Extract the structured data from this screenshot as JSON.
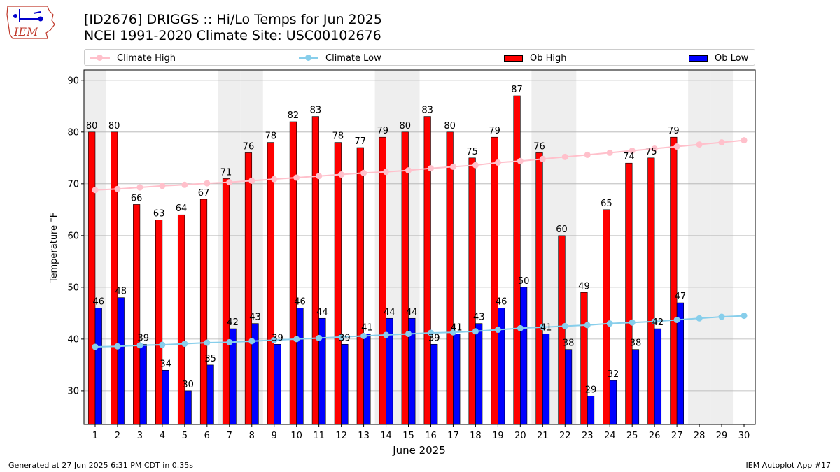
{
  "header": {
    "title_line1": "[ID2676] DRIGGS :: Hi/Lo Temps for Jun 2025",
    "title_line2": "NCEI 1991-2020 Climate Site: USC00102676",
    "logo_text": "IEM"
  },
  "footer": {
    "left": "Generated at 27 Jun 2025 6:31 PM CDT in 0.35s",
    "right": "IEM Autoplot App #17"
  },
  "legend": {
    "climate_high": "Climate High",
    "climate_low": "Climate Low",
    "ob_high": "Ob High",
    "ob_low": "Ob Low"
  },
  "chart_data": {
    "type": "bar",
    "xlabel": "June 2025",
    "ylabel": "Temperature °F",
    "ylim": [
      23.5,
      92
    ],
    "yticks": [
      30,
      40,
      50,
      60,
      70,
      80,
      90
    ],
    "grid": true,
    "legend_position": "top",
    "categories": [
      "1",
      "2",
      "3",
      "4",
      "5",
      "6",
      "7",
      "8",
      "9",
      "10",
      "11",
      "12",
      "13",
      "14",
      "15",
      "16",
      "17",
      "18",
      "19",
      "20",
      "21",
      "22",
      "23",
      "24",
      "25",
      "26",
      "27",
      "28",
      "29",
      "30"
    ],
    "weekend_days": [
      1,
      7,
      8,
      14,
      15,
      21,
      22,
      28,
      29
    ],
    "series": [
      {
        "name": "Ob High",
        "kind": "bar",
        "color": "#ff0000",
        "values": [
          80,
          80,
          66,
          63,
          64,
          67,
          71,
          76,
          78,
          82,
          83,
          78,
          77,
          79,
          80,
          83,
          80,
          75,
          79,
          87,
          76,
          60,
          49,
          65,
          74,
          75,
          79,
          null,
          null,
          null
        ]
      },
      {
        "name": "Ob Low",
        "kind": "bar",
        "color": "#0000ff",
        "values": [
          46,
          48,
          39,
          34,
          30,
          35,
          42,
          43,
          39,
          46,
          44,
          39,
          41,
          44,
          44,
          39,
          41,
          43,
          46,
          50,
          41,
          38,
          29,
          32,
          38,
          42,
          47,
          null,
          null,
          null
        ]
      },
      {
        "name": "Climate High",
        "kind": "line",
        "color": "#ffc0cb",
        "values": [
          68.8,
          69.0,
          69.3,
          69.6,
          69.8,
          70.1,
          70.3,
          70.6,
          70.9,
          71.2,
          71.5,
          71.8,
          72.1,
          72.3,
          72.6,
          73.0,
          73.3,
          73.6,
          74.1,
          74.4,
          74.8,
          75.2,
          75.6,
          76.0,
          76.4,
          76.8,
          77.2,
          77.6,
          78.0,
          78.4
        ]
      },
      {
        "name": "Climate Low",
        "kind": "line",
        "color": "#87ceeb",
        "values": [
          38.5,
          38.6,
          38.8,
          38.9,
          39.1,
          39.3,
          39.4,
          39.6,
          39.8,
          40.0,
          40.2,
          40.4,
          40.6,
          40.8,
          41.0,
          41.2,
          41.3,
          41.5,
          41.8,
          42.1,
          42.3,
          42.5,
          42.7,
          43.0,
          43.2,
          43.4,
          43.7,
          44.0,
          44.3,
          44.5
        ]
      }
    ]
  }
}
